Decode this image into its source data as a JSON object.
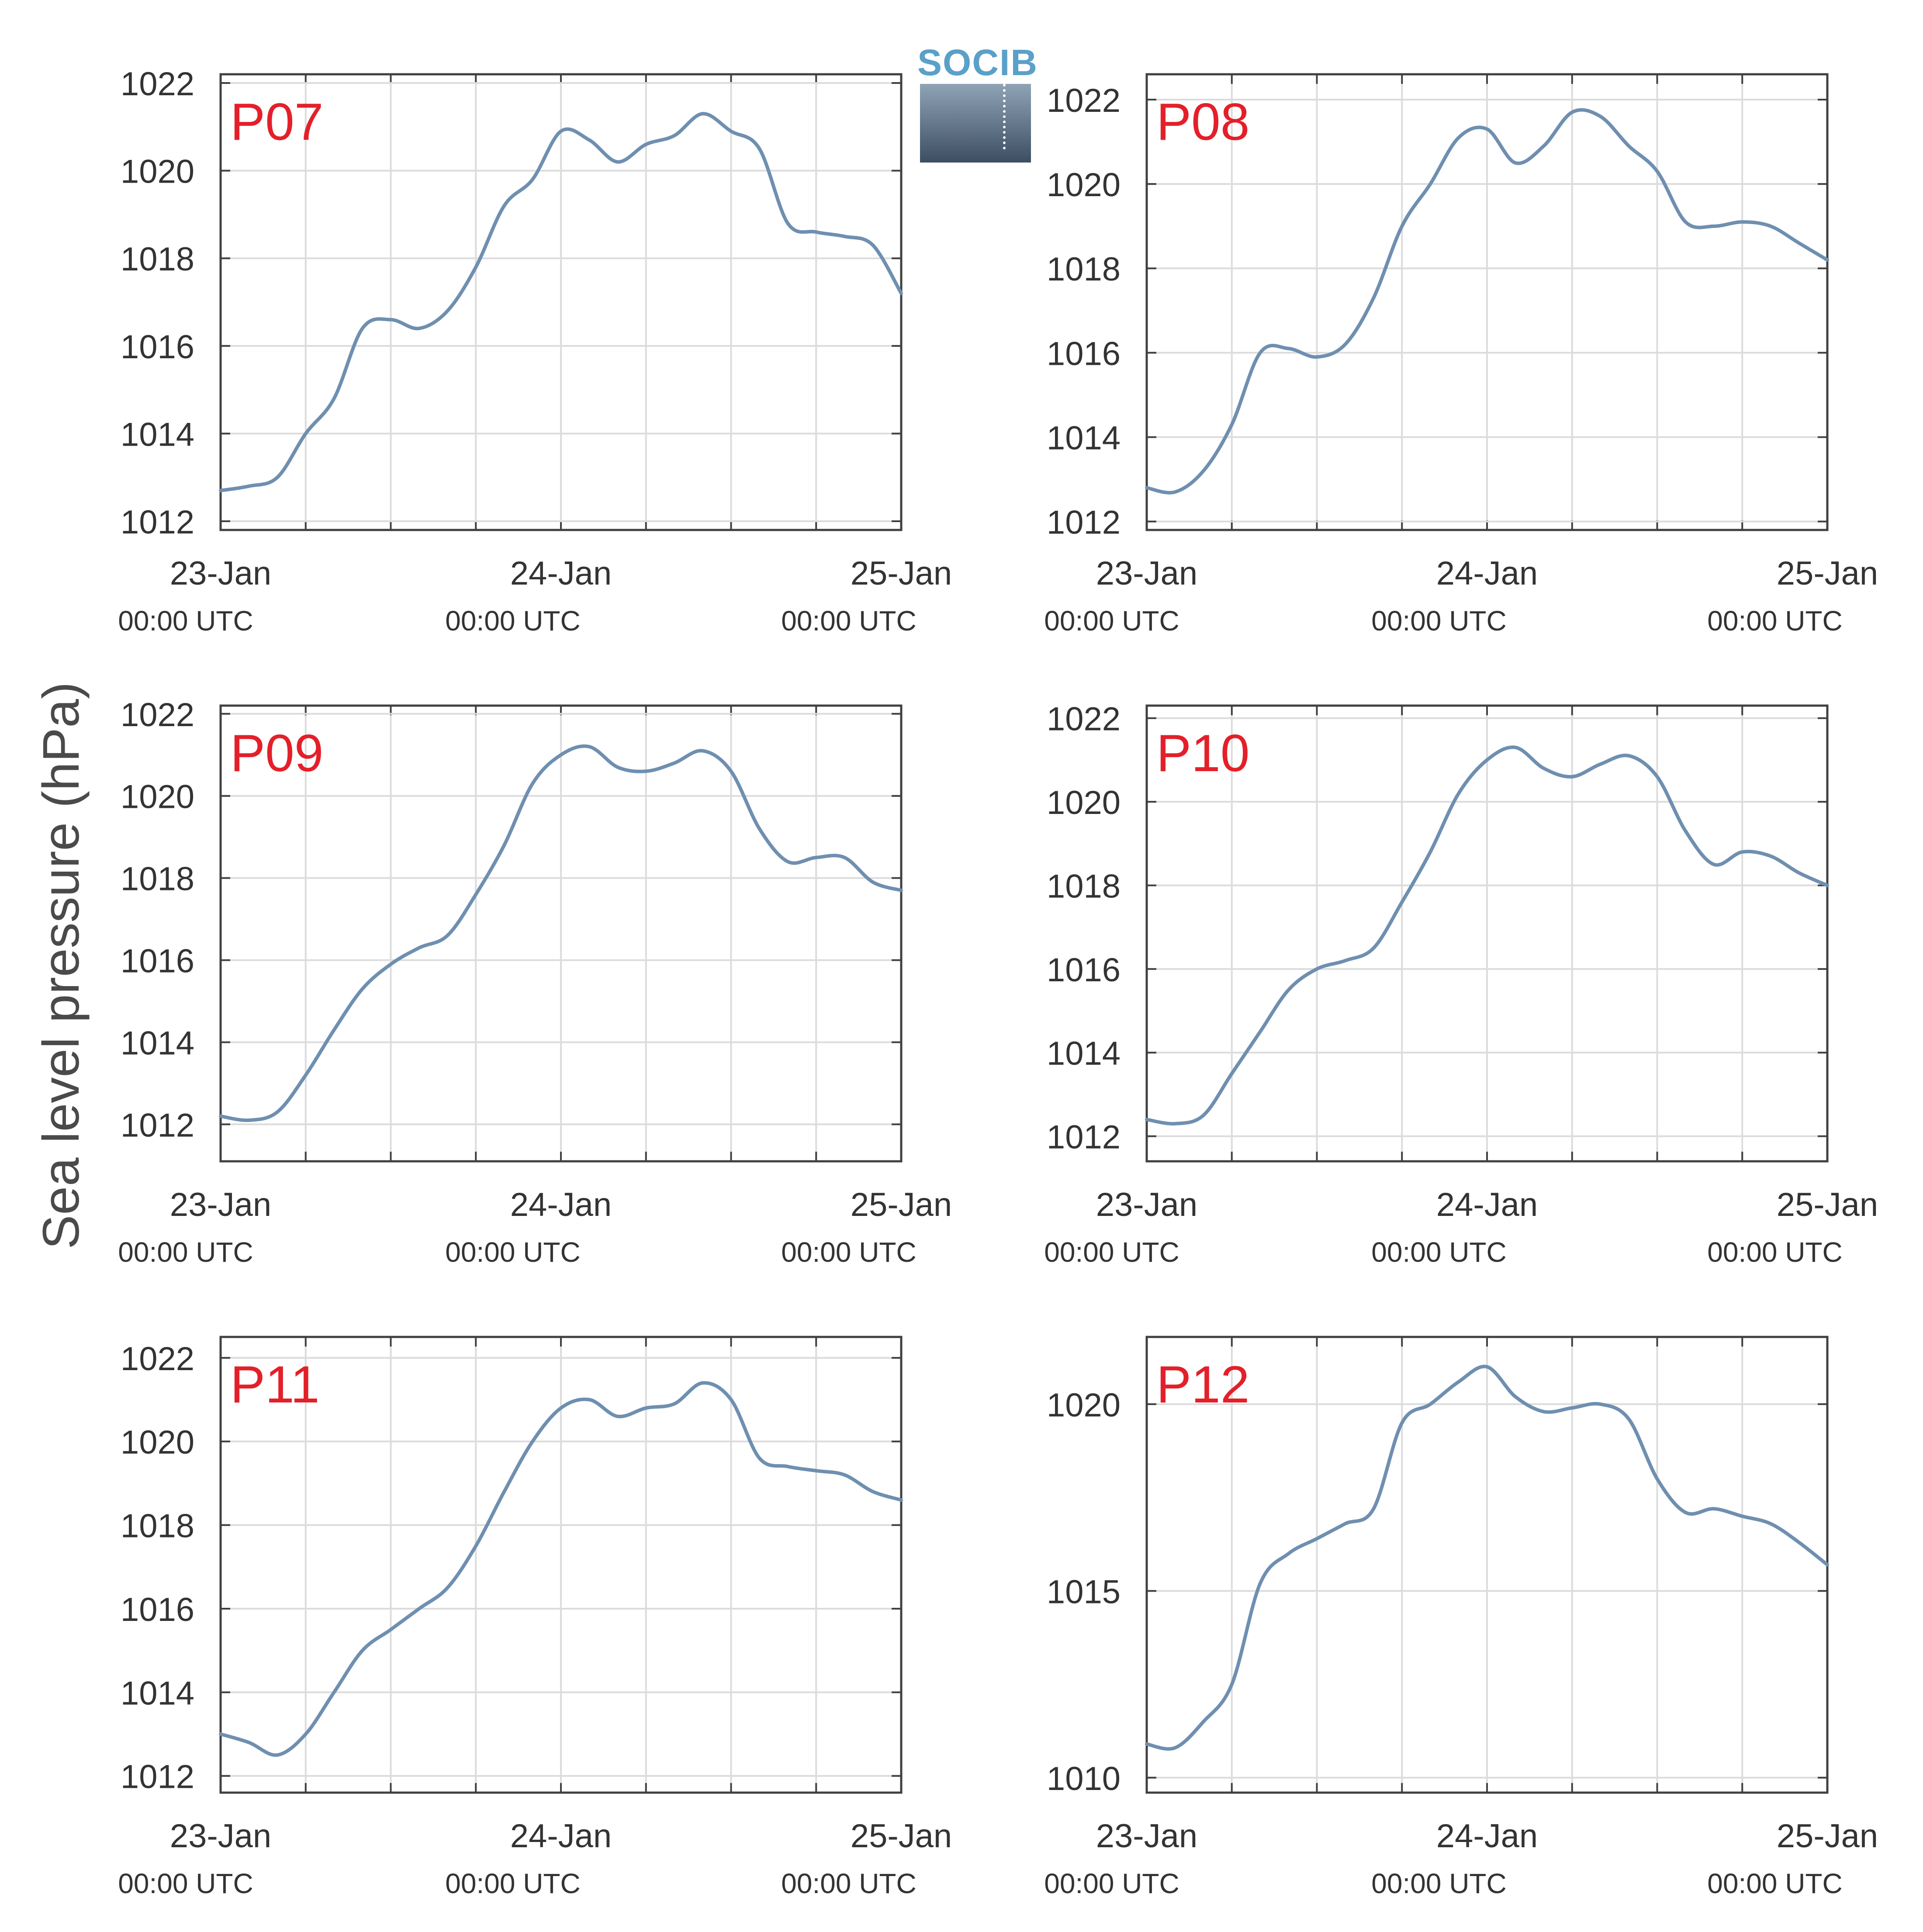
{
  "figure": {
    "ylabel": "Sea level pressure (hPa)",
    "logo_text": "SOCIB"
  },
  "colors": {
    "line": "#6f8fb0",
    "panel_label": "#e3202a",
    "axis": "#404040",
    "grid": "#dcdcdc",
    "text": "#333333",
    "logo": "#5aa0c8"
  },
  "chart_data": [
    {
      "type": "line",
      "panel_label": "P07",
      "x_unit": "hours since 23-Jan 00:00 UTC",
      "x": [
        0,
        2,
        4,
        6,
        8,
        10,
        12,
        14,
        16,
        18,
        20,
        22,
        24,
        26,
        28,
        30,
        32,
        34,
        36,
        38,
        40,
        42,
        44,
        46,
        48
      ],
      "y": [
        1012.7,
        1012.8,
        1013.0,
        1014.0,
        1014.8,
        1016.4,
        1016.6,
        1016.4,
        1016.8,
        1017.8,
        1019.2,
        1019.8,
        1020.9,
        1020.7,
        1020.2,
        1020.6,
        1020.8,
        1021.3,
        1020.9,
        1020.5,
        1018.8,
        1018.6,
        1018.5,
        1018.3,
        1017.2
      ],
      "ylim": [
        1011.8,
        1022.2
      ],
      "yticks": [
        1012,
        1014,
        1016,
        1018,
        1020,
        1022
      ],
      "xticks": [
        0,
        24,
        48
      ],
      "xtick_labels": [
        "23-Jan",
        "24-Jan",
        "25-Jan"
      ],
      "xtick_sublabels": [
        "00:00 UTC",
        "00:00 UTC",
        "00:00 UTC"
      ]
    },
    {
      "type": "line",
      "panel_label": "P08",
      "x_unit": "hours since 23-Jan 00:00 UTC",
      "x": [
        0,
        2,
        4,
        6,
        8,
        10,
        12,
        14,
        16,
        18,
        20,
        22,
        24,
        26,
        28,
        30,
        32,
        34,
        36,
        38,
        40,
        42,
        44,
        46,
        48
      ],
      "y": [
        1012.8,
        1012.7,
        1013.2,
        1014.3,
        1016.0,
        1016.1,
        1015.9,
        1016.2,
        1017.3,
        1019.0,
        1020.0,
        1021.1,
        1021.3,
        1020.5,
        1020.9,
        1021.7,
        1021.6,
        1020.9,
        1020.3,
        1019.1,
        1019.0,
        1019.1,
        1019.0,
        1018.6,
        1018.2
      ],
      "ylim": [
        1011.8,
        1022.6
      ],
      "yticks": [
        1012,
        1014,
        1016,
        1018,
        1020,
        1022
      ],
      "xticks": [
        0,
        24,
        48
      ],
      "xtick_labels": [
        "23-Jan",
        "24-Jan",
        "25-Jan"
      ],
      "xtick_sublabels": [
        "00:00 UTC",
        "00:00 UTC",
        "00:00 UTC"
      ]
    },
    {
      "type": "line",
      "panel_label": "P09",
      "x_unit": "hours since 23-Jan 00:00 UTC",
      "x": [
        0,
        2,
        4,
        6,
        8,
        10,
        12,
        14,
        16,
        18,
        20,
        22,
        24,
        26,
        28,
        30,
        32,
        34,
        36,
        38,
        40,
        42,
        44,
        46,
        48
      ],
      "y": [
        1012.2,
        1012.1,
        1012.3,
        1013.2,
        1014.3,
        1015.3,
        1015.9,
        1016.3,
        1016.6,
        1017.6,
        1018.8,
        1020.3,
        1021.0,
        1021.2,
        1020.7,
        1020.6,
        1020.8,
        1021.1,
        1020.6,
        1019.2,
        1018.4,
        1018.5,
        1018.5,
        1017.9,
        1017.7
      ],
      "ylim": [
        1011.1,
        1022.2
      ],
      "yticks": [
        1012,
        1014,
        1016,
        1018,
        1020,
        1022
      ],
      "xticks": [
        0,
        24,
        48
      ],
      "xtick_labels": [
        "23-Jan",
        "24-Jan",
        "25-Jan"
      ],
      "xtick_sublabels": [
        "00:00 UTC",
        "00:00 UTC",
        "00:00 UTC"
      ]
    },
    {
      "type": "line",
      "panel_label": "P10",
      "x_unit": "hours since 23-Jan 00:00 UTC",
      "x": [
        0,
        2,
        4,
        6,
        8,
        10,
        12,
        14,
        16,
        18,
        20,
        22,
        24,
        26,
        28,
        30,
        32,
        34,
        36,
        38,
        40,
        42,
        44,
        46,
        48
      ],
      "y": [
        1012.4,
        1012.3,
        1012.5,
        1013.5,
        1014.5,
        1015.5,
        1016.0,
        1016.2,
        1016.5,
        1017.6,
        1018.8,
        1020.2,
        1021.0,
        1021.3,
        1020.8,
        1020.6,
        1020.9,
        1021.1,
        1020.6,
        1019.3,
        1018.5,
        1018.8,
        1018.7,
        1018.3,
        1018.0
      ],
      "ylim": [
        1011.4,
        1022.3
      ],
      "yticks": [
        1012,
        1014,
        1016,
        1018,
        1020,
        1022
      ],
      "xticks": [
        0,
        24,
        48
      ],
      "xtick_labels": [
        "23-Jan",
        "24-Jan",
        "25-Jan"
      ],
      "xtick_sublabels": [
        "00:00 UTC",
        "00:00 UTC",
        "00:00 UTC"
      ]
    },
    {
      "type": "line",
      "panel_label": "P11",
      "x_unit": "hours since 23-Jan 00:00 UTC",
      "x": [
        0,
        2,
        4,
        6,
        8,
        10,
        12,
        14,
        16,
        18,
        20,
        22,
        24,
        26,
        28,
        30,
        32,
        34,
        36,
        38,
        40,
        42,
        44,
        46,
        48
      ],
      "y": [
        1013.0,
        1012.8,
        1012.5,
        1013.0,
        1014.0,
        1015.0,
        1015.5,
        1016.0,
        1016.5,
        1017.5,
        1018.8,
        1020.0,
        1020.8,
        1021.0,
        1020.6,
        1020.8,
        1020.9,
        1021.4,
        1021.0,
        1019.6,
        1019.4,
        1019.3,
        1019.2,
        1018.8,
        1018.6
      ],
      "ylim": [
        1011.6,
        1022.5
      ],
      "yticks": [
        1012,
        1014,
        1016,
        1018,
        1020,
        1022
      ],
      "xticks": [
        0,
        24,
        48
      ],
      "xtick_labels": [
        "23-Jan",
        "24-Jan",
        "25-Jan"
      ],
      "xtick_sublabels": [
        "00:00 UTC",
        "00:00 UTC",
        "00:00 UTC"
      ]
    },
    {
      "type": "line",
      "panel_label": "P12",
      "x_unit": "hours since 23-Jan 00:00 UTC",
      "x": [
        0,
        2,
        4,
        6,
        8,
        10,
        12,
        14,
        16,
        18,
        20,
        22,
        24,
        26,
        28,
        30,
        32,
        34,
        36,
        38,
        40,
        42,
        44,
        46,
        48
      ],
      "y": [
        1010.9,
        1010.8,
        1011.5,
        1012.5,
        1015.2,
        1016.0,
        1016.4,
        1016.8,
        1017.2,
        1019.5,
        1020.0,
        1020.6,
        1021.0,
        1020.2,
        1019.8,
        1019.9,
        1020.0,
        1019.6,
        1018.0,
        1017.1,
        1017.2,
        1017.0,
        1016.8,
        1016.3,
        1015.7
      ],
      "ylim": [
        1009.6,
        1021.8
      ],
      "yticks": [
        1010,
        1015,
        1020
      ],
      "xticks": [
        0,
        24,
        48
      ],
      "xtick_labels": [
        "23-Jan",
        "24-Jan",
        "25-Jan"
      ],
      "xtick_sublabels": [
        "00:00 UTC",
        "00:00 UTC",
        "00:00 UTC"
      ]
    }
  ]
}
